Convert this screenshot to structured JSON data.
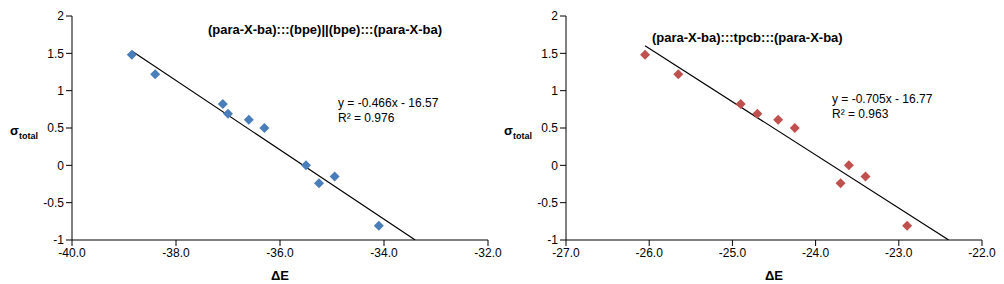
{
  "chart_data": [
    {
      "type": "scatter",
      "title": "(para-X-ba):::(bpe)||(bpe):::(para-X-ba)",
      "x_label": "ΔE",
      "y_label": "σtotal",
      "annotations": [
        "y = -0.466x - 16.57",
        "R² = 0.976"
      ],
      "x": [
        -38.85,
        -38.4,
        -37.1,
        -37.0,
        -36.6,
        -36.3,
        -35.5,
        -35.25,
        -34.95,
        -34.1
      ],
      "values": [
        1.48,
        1.22,
        0.82,
        0.69,
        0.61,
        0.5,
        0.0,
        -0.24,
        -0.15,
        -0.81
      ],
      "color": "#4a7ebb",
      "marker": "diamond",
      "trendline": {
        "x": [
          -38.85,
          -33.4
        ],
        "values": [
          1.53,
          -1.0
        ],
        "color": "#000000",
        "line_style": "solid"
      },
      "xlim": [
        -40,
        -32
      ],
      "xticks": [
        {
          "value": -40,
          "label": "-40.0"
        },
        {
          "value": -38,
          "label": "-38.0"
        },
        {
          "value": -36,
          "label": "-36.0"
        },
        {
          "value": -34,
          "label": "-34.0"
        },
        {
          "value": -32,
          "label": "-32.0"
        }
      ],
      "ylim": [
        -1,
        2
      ],
      "yticks": [
        -1,
        -0.5,
        0,
        0.5,
        1,
        1.5,
        2
      ],
      "grid": false
    },
    {
      "type": "scatter",
      "title": "(para-X-ba):::tpcb:::(para-X-ba)",
      "x_label": "ΔE",
      "y_label": "σtotal",
      "annotations": [
        "y = -0.705x - 16.77",
        "R² = 0.963"
      ],
      "x": [
        -26.05,
        -25.65,
        -24.9,
        -24.7,
        -24.45,
        -24.25,
        -23.6,
        -23.7,
        -23.4,
        -22.9
      ],
      "values": [
        1.48,
        1.22,
        0.82,
        0.69,
        0.61,
        0.5,
        0.0,
        -0.24,
        -0.15,
        -0.81
      ],
      "color": "#c0504d",
      "marker": "diamond",
      "trendline": {
        "x": [
          -26.05,
          -22.4
        ],
        "values": [
          1.6,
          -1.0
        ],
        "color": "#000000",
        "line_style": "solid"
      },
      "xlim": [
        -27,
        -22
      ],
      "xticks": [
        {
          "value": -27,
          "label": "-27.0"
        },
        {
          "value": -26,
          "label": "-26.0"
        },
        {
          "value": -25,
          "label": "-25.0"
        },
        {
          "value": -24,
          "label": "-24.0"
        },
        {
          "value": -23,
          "label": "-23.0"
        },
        {
          "value": -22,
          "label": "-22.0"
        }
      ],
      "ylim": [
        -1,
        2
      ],
      "yticks": [
        -1,
        -0.5,
        0,
        0.5,
        1,
        1.5,
        2
      ],
      "grid": false
    }
  ]
}
